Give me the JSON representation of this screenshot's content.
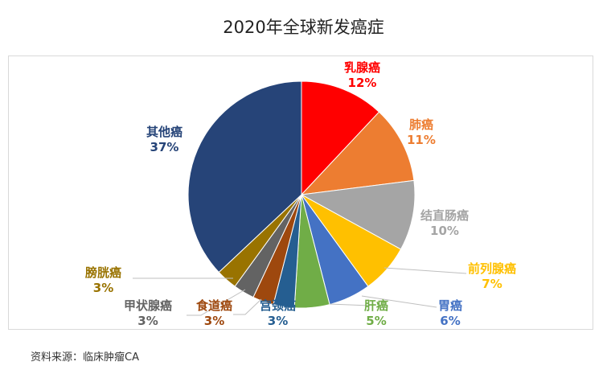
{
  "title": "2020年全球新发癌症",
  "source": "资料来源：临床肿瘤CA",
  "chart_data": {
    "type": "pie",
    "title": "2020年全球新发癌症",
    "categories": [
      "乳腺癌",
      "肺癌",
      "结直肠癌",
      "前列腺癌",
      "胃癌",
      "肝癌",
      "宫颈癌",
      "食道癌",
      "甲状腺癌",
      "膀胱癌",
      "其他癌"
    ],
    "values": [
      12,
      11,
      10,
      7,
      6,
      5,
      3,
      3,
      3,
      3,
      37
    ],
    "unit": "%",
    "colors": [
      "#ff0000",
      "#ed7d31",
      "#a5a5a5",
      "#ffc000",
      "#4472c4",
      "#70ad47",
      "#255e91",
      "#9e480e",
      "#636363",
      "#997300",
      "#264478"
    ],
    "label_colors": [
      "#ff0000",
      "#ed7d31",
      "#a5a5a5",
      "#ffc000",
      "#4472c4",
      "#70ad47",
      "#255e91",
      "#9e480e",
      "#636363",
      "#997300",
      "#264478"
    ],
    "start_angle_deg": 0,
    "direction": "clockwise",
    "legend": "none (data labels with category name and percentage)"
  },
  "labels": [
    {
      "name": "乳腺癌",
      "pct": "12%"
    },
    {
      "name": "肺癌",
      "pct": "11%"
    },
    {
      "name": "结直肠癌",
      "pct": "10%"
    },
    {
      "name": "前列腺癌",
      "pct": "7%"
    },
    {
      "name": "胃癌",
      "pct": "6%"
    },
    {
      "name": "肝癌",
      "pct": "5%"
    },
    {
      "name": "宫颈癌",
      "pct": "3%"
    },
    {
      "name": "食道癌",
      "pct": "3%"
    },
    {
      "name": "甲状腺癌",
      "pct": "3%"
    },
    {
      "name": "膀胱癌",
      "pct": "3%"
    },
    {
      "name": "其他癌",
      "pct": "37%"
    }
  ]
}
